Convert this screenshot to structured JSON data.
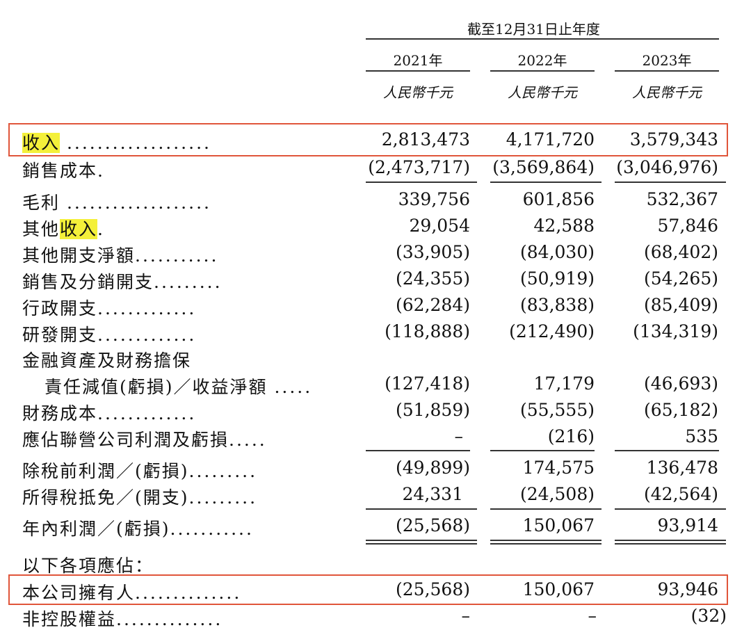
{
  "header": {
    "period": "截至12月31日止年度",
    "years": [
      "2021年",
      "2022年",
      "2023年"
    ],
    "unit": "人民幣千元"
  },
  "rows": [
    {
      "label": "收入",
      "dots": "...................",
      "values": [
        "2,813,473",
        "4,171,720",
        "3,579,343"
      ]
    },
    {
      "label": "銷售成本",
      "dots": ".",
      "values": [
        "(2,473,717)",
        "(3,569,864)",
        "(3,046,976)"
      ]
    },
    {
      "label": "毛利",
      "dots": "...................",
      "values": [
        "339,756",
        "601,856",
        "532,367"
      ]
    },
    {
      "label_prefix": "其他",
      "label_highlight": "收入",
      "dots": ".",
      "values": [
        "29,054",
        "42,588",
        "57,846"
      ]
    },
    {
      "label": "其他開支淨額",
      "dots": "...........",
      "values": [
        "(33,905)",
        "(84,030)",
        "(68,402)"
      ]
    },
    {
      "label": "銷售及分銷開支",
      "dots": ".........",
      "values": [
        "(24,355)",
        "(50,919)",
        "(54,265)"
      ]
    },
    {
      "label": "行政開支",
      "dots": ".............",
      "values": [
        "(62,284)",
        "(83,838)",
        "(85,409)"
      ]
    },
    {
      "label": "研發開支",
      "dots": ".............",
      "values": [
        "(118,888)",
        "(212,490)",
        "(134,319)"
      ]
    },
    {
      "label": "金融資產及財務擔保"
    },
    {
      "label": "責任減值(虧損)／收益淨額",
      "dots": ".....",
      "values": [
        "(127,418)",
        "17,179",
        "(46,693)"
      ]
    },
    {
      "label": "財務成本",
      "dots": ".............",
      "values": [
        "(51,859)",
        "(55,555)",
        "(65,182)"
      ]
    },
    {
      "label": "應佔聯營公司利潤及虧損",
      "dots": ".....",
      "values": [
        "–",
        "(216)",
        "535"
      ]
    },
    {
      "label": "除稅前利潤／(虧損)",
      "dots": ".........",
      "values": [
        "(49,899)",
        "174,575",
        "136,478"
      ]
    },
    {
      "label": "所得稅抵免／(開支)",
      "dots": ".........",
      "values": [
        "24,331",
        "(24,508)",
        "(42,564)"
      ]
    },
    {
      "label": "年內利潤／(虧損)",
      "dots": "...........",
      "values": [
        "(25,568)",
        "150,067",
        "93,914"
      ]
    },
    {
      "label": "以下各項應佔："
    },
    {
      "label": "本公司擁有人",
      "dots": "..............",
      "values": [
        "(25,568)",
        "150,067",
        "93,946"
      ]
    },
    {
      "label": "非控股權益",
      "dots": "..............",
      "values": [
        "–",
        "–",
        "(32)"
      ]
    }
  ]
}
